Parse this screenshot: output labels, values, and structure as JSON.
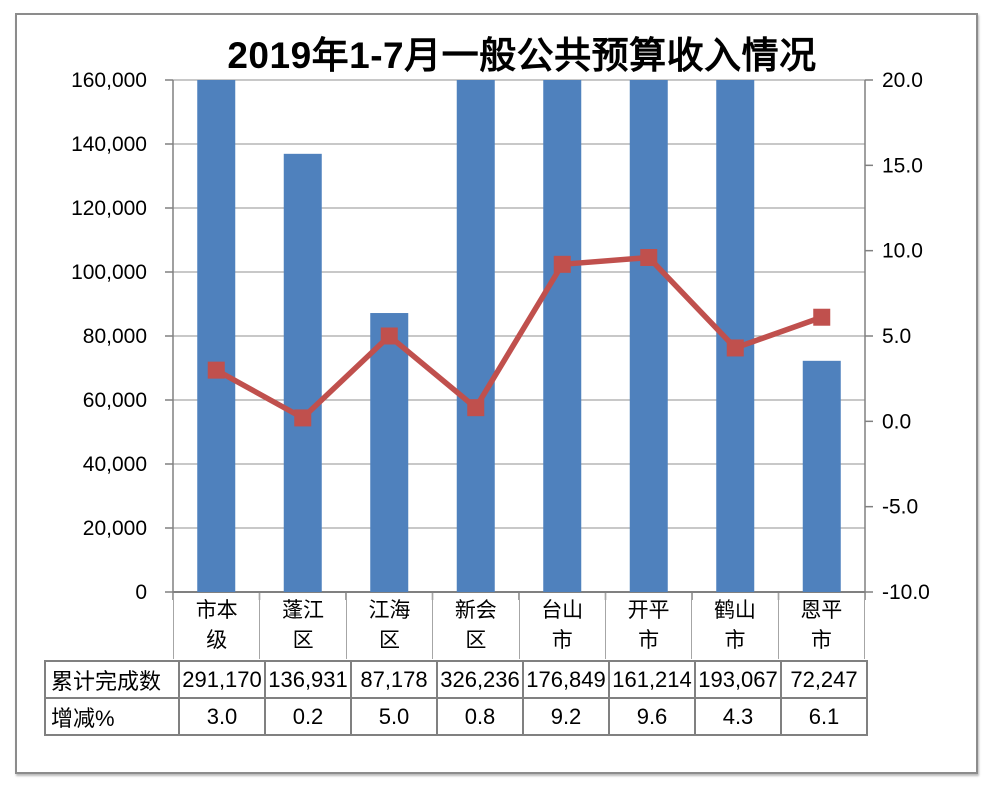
{
  "colors": {
    "bar": "#4F81BD",
    "line": "#C0504D",
    "grid": "#a6a6a6",
    "axis": "#808080",
    "category_border": "#a6a6a6",
    "table_border": "#808080",
    "frame_border": "#8c8c8c"
  },
  "chart_data": {
    "type": "combo-bar-line",
    "title": "2019年1-7月一般公共预算收入情况",
    "categories": [
      "市本级",
      "蓬江区",
      "江海区",
      "新会区",
      "台山市",
      "开平市",
      "鹤山市",
      "恩平市"
    ],
    "series": [
      {
        "name": "累计完成数",
        "type": "bar",
        "axis": "left",
        "color": "#4F81BD",
        "values": [
          291170,
          136931,
          87178,
          326236,
          176849,
          161214,
          193067,
          72247
        ]
      },
      {
        "name": "增减%",
        "type": "line",
        "axis": "right",
        "color": "#C0504D",
        "marker": "square",
        "values": [
          3.0,
          0.2,
          5.0,
          0.8,
          9.2,
          9.6,
          4.3,
          6.1
        ]
      }
    ],
    "left_axis": {
      "min": 0,
      "max": 160000,
      "step": 20000,
      "tick_labels_top_to_bottom": [
        "160,000",
        "140,000",
        "120,000",
        "100,000",
        "80,000",
        "60,000",
        "40,000",
        "20,000",
        "0"
      ]
    },
    "right_axis": {
      "min": -10,
      "max": 20,
      "step": 5,
      "tick_labels_top_to_bottom": [
        "20.0",
        "15.0",
        "10.0",
        "5.0",
        "0.0",
        "-5.0",
        "-10.0"
      ]
    },
    "grid": true,
    "legend": "none",
    "layout_note": "bars taller than left-axis max are clipped at plot top"
  },
  "table": {
    "rows": [
      {
        "label": "累计完成数",
        "cells": [
          "291,170",
          "136,931",
          "87,178",
          "326,236",
          "176,849",
          "161,214",
          "193,067",
          "72,247"
        ]
      },
      {
        "label": "增减%",
        "cells": [
          "3.0",
          "0.2",
          "5.0",
          "0.8",
          "9.2",
          "9.6",
          "4.3",
          "6.1"
        ]
      }
    ]
  }
}
